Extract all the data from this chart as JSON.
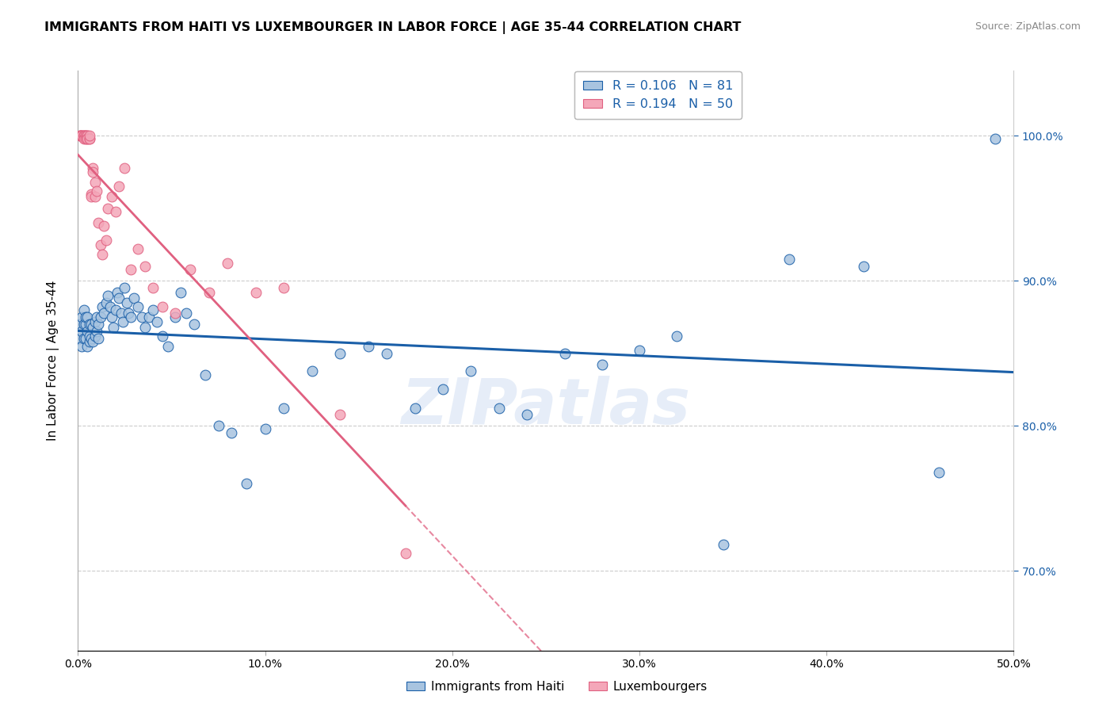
{
  "title": "IMMIGRANTS FROM HAITI VS LUXEMBOURGER IN LABOR FORCE | AGE 35-44 CORRELATION CHART",
  "source": "Source: ZipAtlas.com",
  "ylabel": "In Labor Force | Age 35-44",
  "xlim": [
    0.0,
    0.5
  ],
  "ylim": [
    0.645,
    1.045
  ],
  "xticks": [
    0.0,
    0.1,
    0.2,
    0.3,
    0.4,
    0.5
  ],
  "yticks": [
    0.7,
    0.8,
    0.9,
    1.0
  ],
  "ytick_labels": [
    "70.0%",
    "80.0%",
    "90.0%",
    "100.0%"
  ],
  "xtick_labels": [
    "0.0%",
    "10.0%",
    "20.0%",
    "30.0%",
    "40.0%",
    "50.0%"
  ],
  "R_haiti": 0.106,
  "N_haiti": 81,
  "R_lux": 0.194,
  "N_lux": 50,
  "color_haiti": "#a8c4e0",
  "color_lux": "#f4a7b9",
  "line_color_haiti": "#1a5fa8",
  "line_color_lux": "#e06080",
  "watermark": "ZIPatlas",
  "haiti_x": [
    0.001,
    0.001,
    0.002,
    0.002,
    0.002,
    0.003,
    0.003,
    0.003,
    0.004,
    0.004,
    0.004,
    0.005,
    0.005,
    0.005,
    0.006,
    0.006,
    0.006,
    0.007,
    0.007,
    0.008,
    0.008,
    0.009,
    0.009,
    0.01,
    0.01,
    0.011,
    0.011,
    0.012,
    0.013,
    0.014,
    0.015,
    0.016,
    0.017,
    0.018,
    0.019,
    0.02,
    0.021,
    0.022,
    0.023,
    0.024,
    0.025,
    0.026,
    0.027,
    0.028,
    0.03,
    0.032,
    0.034,
    0.036,
    0.038,
    0.04,
    0.042,
    0.045,
    0.048,
    0.052,
    0.055,
    0.058,
    0.062,
    0.068,
    0.075,
    0.082,
    0.09,
    0.1,
    0.11,
    0.125,
    0.14,
    0.155,
    0.165,
    0.18,
    0.195,
    0.21,
    0.225,
    0.24,
    0.26,
    0.28,
    0.3,
    0.32,
    0.345,
    0.38,
    0.42,
    0.46,
    0.49
  ],
  "haiti_y": [
    0.86,
    0.87,
    0.855,
    0.865,
    0.875,
    0.86,
    0.87,
    0.88,
    0.86,
    0.87,
    0.875,
    0.855,
    0.865,
    0.875,
    0.858,
    0.862,
    0.87,
    0.86,
    0.87,
    0.858,
    0.868,
    0.862,
    0.872,
    0.865,
    0.875,
    0.87,
    0.86,
    0.875,
    0.882,
    0.878,
    0.885,
    0.89,
    0.882,
    0.875,
    0.868,
    0.88,
    0.892,
    0.888,
    0.878,
    0.872,
    0.895,
    0.885,
    0.878,
    0.875,
    0.888,
    0.882,
    0.875,
    0.868,
    0.875,
    0.88,
    0.872,
    0.862,
    0.855,
    0.875,
    0.892,
    0.878,
    0.87,
    0.835,
    0.8,
    0.795,
    0.76,
    0.798,
    0.812,
    0.838,
    0.85,
    0.855,
    0.85,
    0.812,
    0.825,
    0.838,
    0.812,
    0.808,
    0.85,
    0.842,
    0.852,
    0.862,
    0.718,
    0.915,
    0.91,
    0.768,
    0.998
  ],
  "lux_x": [
    0.001,
    0.001,
    0.001,
    0.002,
    0.002,
    0.002,
    0.003,
    0.003,
    0.003,
    0.003,
    0.004,
    0.004,
    0.004,
    0.005,
    0.005,
    0.005,
    0.005,
    0.006,
    0.006,
    0.006,
    0.007,
    0.007,
    0.008,
    0.008,
    0.009,
    0.009,
    0.01,
    0.011,
    0.012,
    0.013,
    0.014,
    0.015,
    0.016,
    0.018,
    0.02,
    0.022,
    0.025,
    0.028,
    0.032,
    0.036,
    0.04,
    0.045,
    0.052,
    0.06,
    0.07,
    0.08,
    0.095,
    0.11,
    0.14,
    0.175
  ],
  "lux_y": [
    1.0,
    1.0,
    1.0,
    1.0,
    1.0,
    1.0,
    1.0,
    1.0,
    1.0,
    0.998,
    1.0,
    1.0,
    0.998,
    1.0,
    1.0,
    0.998,
    0.998,
    0.998,
    0.998,
    1.0,
    0.96,
    0.958,
    0.978,
    0.975,
    0.968,
    0.958,
    0.962,
    0.94,
    0.925,
    0.918,
    0.938,
    0.928,
    0.95,
    0.958,
    0.948,
    0.965,
    0.978,
    0.908,
    0.922,
    0.91,
    0.895,
    0.882,
    0.878,
    0.908,
    0.892,
    0.912,
    0.892,
    0.895,
    0.808,
    0.712
  ]
}
